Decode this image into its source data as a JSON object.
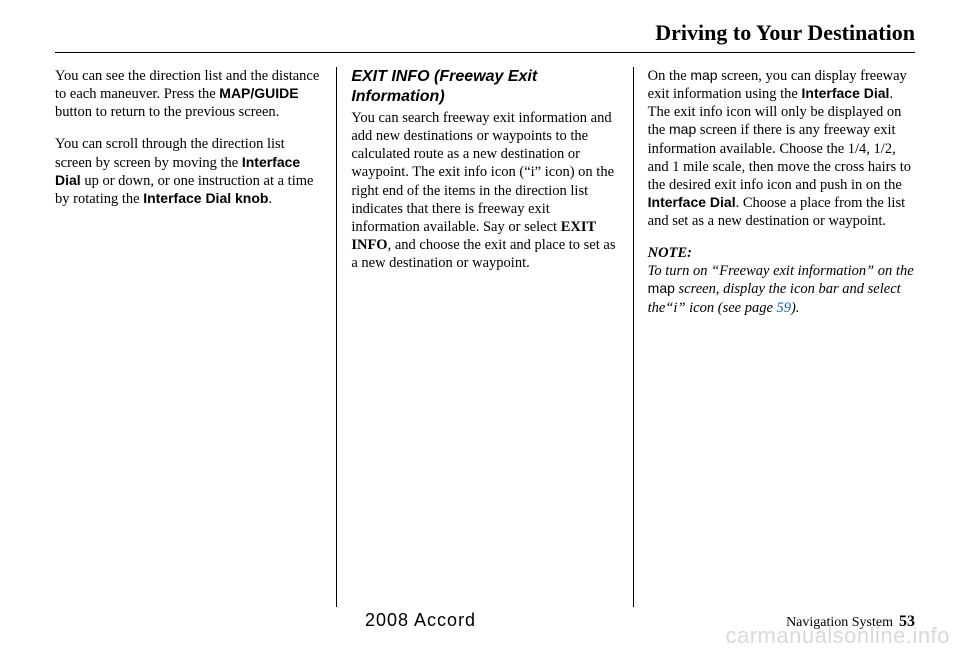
{
  "header": {
    "title": "Driving to Your Destination"
  },
  "col1": {
    "p1_a": "You can see the direction list and the distance to each maneuver. Press the ",
    "p1_b": "MAP/GUIDE",
    "p1_c": " button to return to the previous screen.",
    "p2_a": "You can scroll through the direction list screen by screen by moving the ",
    "p2_b": "Interface Dial",
    "p2_c": " up or down, or one instruction at a time by rotating the ",
    "p2_d": "Interface Dial knob",
    "p2_e": "."
  },
  "col2": {
    "heading": "EXIT INFO (Freeway Exit Information)",
    "p1_a": "You can search freeway exit information and add new destinations or waypoints to the calculated route as a new destination or waypoint. The exit info icon (“i” icon) on the right end of the items in the direction list indicates that there is freeway exit information available. Say or select ",
    "p1_b": "EXIT INFO",
    "p1_c": ", and choose the exit and place to set as a new destination or waypoint."
  },
  "col3": {
    "p1_a": "On the ",
    "p1_b": "map",
    "p1_c": " screen, you can display freeway exit information using the ",
    "p1_d": "Interface Dial",
    "p1_e": ". The exit info icon will only be displayed on the ",
    "p1_f": "map",
    "p1_g": " screen if there is any freeway exit information available. Choose the 1/4, 1/2, and 1 mile scale, then move the cross hairs to the desired exit info icon and push in on the ",
    "p1_h": "Interface Dial",
    "p1_i": ". Choose a place from the list and set as a new destination or waypoint.",
    "note_label": "NOTE:",
    "note_a": "To turn on “Freeway exit information” on the ",
    "note_b": "map",
    "note_c": " screen, display the icon bar and select the“i” icon (see page ",
    "note_link": "59",
    "note_d": ")."
  },
  "footer": {
    "model": "2008  Accord",
    "system": "Navigation System",
    "page": "53"
  },
  "watermark": "carmanualsonline.info"
}
